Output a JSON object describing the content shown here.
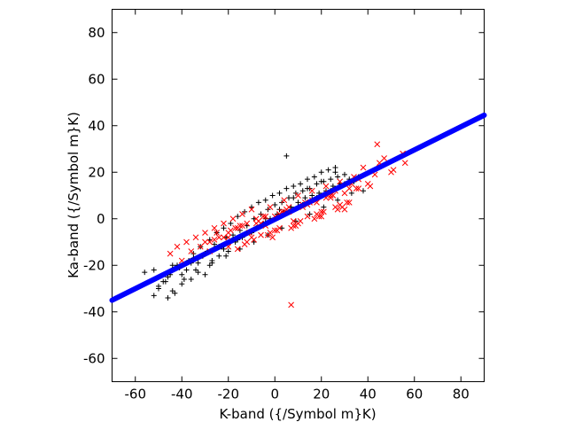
{
  "chart_data": {
    "type": "scatter",
    "xlabel": "K-band ({/Symbol m}K)",
    "ylabel": "Ka-band ({/Symbol m}K)",
    "xlim": [
      -70,
      90
    ],
    "ylim": [
      -70,
      90
    ],
    "xticks": [
      -60,
      -40,
      -20,
      0,
      20,
      40,
      60,
      80
    ],
    "yticks": [
      -60,
      -40,
      -20,
      0,
      20,
      40,
      60,
      80
    ],
    "xtick_labels": [
      "-60",
      "-40",
      "-20",
      "0",
      "20",
      "40",
      "60",
      "80"
    ],
    "ytick_labels": [
      "-60",
      "-40",
      "-20",
      "0",
      "20",
      "40",
      "60",
      "80"
    ],
    "grid": false,
    "series": [
      {
        "marker": "plus",
        "color": "#000000",
        "x": [
          -56,
          -52,
          -50,
          -48,
          -46,
          -45,
          -44,
          -42,
          -40,
          -38,
          -37,
          -36,
          -35,
          -34,
          -33,
          -32,
          -31,
          -30,
          -29,
          -28,
          -27,
          -26,
          -25,
          -24,
          -23,
          -22,
          -21,
          -20,
          -19,
          -18,
          -17,
          -16,
          -15,
          -14,
          -13,
          -12,
          -11,
          -10,
          -9,
          -8,
          -7,
          -6,
          -5,
          -4,
          -3,
          -2,
          -1,
          0,
          1,
          2,
          3,
          4,
          5,
          6,
          7,
          8,
          9,
          10,
          11,
          12,
          13,
          14,
          15,
          16,
          17,
          18,
          19,
          20,
          21,
          22,
          23,
          24,
          25,
          26,
          27,
          28,
          30,
          32,
          34,
          36,
          38,
          -50,
          -46,
          -43,
          -41,
          -39,
          -36,
          -33,
          -30,
          -27,
          -24,
          -21,
          -18,
          -15,
          -12,
          -9,
          -6,
          -3,
          0,
          3,
          6,
          9,
          12,
          15,
          18,
          21,
          24,
          27,
          30,
          33,
          -52,
          -47,
          -44,
          -40,
          -35,
          -28,
          -22,
          -16,
          -10,
          -4,
          2,
          8,
          14,
          20,
          26,
          5
        ],
        "y": [
          -23,
          -22,
          -29,
          -27,
          -34,
          -24,
          -31,
          -20,
          -28,
          -22,
          -18,
          -26,
          -15,
          -22,
          -19,
          -12,
          -16,
          -24,
          -14,
          -9,
          -18,
          -11,
          -6,
          -16,
          -12,
          -4,
          -8,
          -14,
          -2,
          -7,
          -10,
          1,
          -5,
          -8,
          3,
          -3,
          -6,
          5,
          0,
          -4,
          7,
          2,
          -2,
          8,
          4,
          0,
          10,
          6,
          2,
          11,
          7,
          3,
          13,
          9,
          5,
          14,
          11,
          7,
          15,
          12,
          9,
          17,
          13,
          10,
          18,
          15,
          11,
          20,
          16,
          12,
          21,
          17,
          14,
          22,
          18,
          15,
          19,
          17,
          16,
          18,
          12,
          -30,
          -25,
          -32,
          -21,
          -26,
          -19,
          -23,
          -15,
          -19,
          -12,
          -16,
          -9,
          -13,
          -6,
          -10,
          -3,
          -7,
          0,
          -4,
          3,
          -1,
          6,
          2,
          9,
          5,
          12,
          8,
          15,
          11,
          -33,
          -27,
          -20,
          -24,
          -17,
          -20,
          -13,
          -9,
          -6,
          0,
          4,
          9,
          13,
          16,
          20,
          27
        ]
      },
      {
        "marker": "cross",
        "color": "#ff0000",
        "x": [
          -45,
          -42,
          -40,
          -38,
          -36,
          -34,
          -32,
          -30,
          -28,
          -26,
          -24,
          -22,
          -20,
          -18,
          -16,
          -14,
          -12,
          -10,
          -8,
          -6,
          -4,
          -2,
          0,
          2,
          4,
          6,
          8,
          10,
          12,
          14,
          16,
          18,
          20,
          22,
          24,
          26,
          28,
          30,
          32,
          34,
          36,
          38,
          40,
          45,
          50,
          55,
          -30,
          -25,
          -20,
          -15,
          -10,
          -5,
          0,
          5,
          10,
          15,
          20,
          25,
          30,
          35,
          -28,
          -22,
          -17,
          -12,
          -7,
          -2,
          3,
          8,
          13,
          18,
          23,
          28,
          33,
          -26,
          -19,
          -13,
          -8,
          -3,
          2,
          7,
          12,
          17,
          22,
          27,
          32,
          -20,
          -14,
          -9,
          -4,
          1,
          6,
          11,
          16,
          21,
          26,
          31,
          -16,
          -11,
          -6,
          -1,
          4,
          9,
          14,
          19,
          24,
          29,
          7,
          44,
          47,
          51,
          56,
          43,
          36,
          41
        ],
        "y": [
          -15,
          -12,
          -18,
          -10,
          -14,
          -8,
          -12,
          -6,
          -10,
          -4,
          -8,
          -2,
          -6,
          0,
          -4,
          2,
          -2,
          4,
          0,
          -7,
          -3,
          5,
          1,
          -4,
          8,
          3,
          -1,
          10,
          5,
          1,
          12,
          7,
          3,
          14,
          9,
          5,
          16,
          11,
          7,
          18,
          13,
          22,
          15,
          24,
          20,
          28,
          -10,
          -6,
          -12,
          -3,
          -8,
          1,
          -5,
          4,
          -2,
          7,
          1,
          10,
          4,
          13,
          -14,
          -8,
          -4,
          -10,
          -1,
          -6,
          3,
          -3,
          7,
          2,
          11,
          6,
          15,
          -9,
          -5,
          -11,
          -2,
          -7,
          2,
          -4,
          6,
          0,
          9,
          4,
          13,
          -8,
          -3,
          -9,
          1,
          -5,
          5,
          -1,
          8,
          3,
          12,
          7,
          -13,
          -6,
          -2,
          -8,
          3,
          -3,
          6,
          1,
          10,
          5,
          -37,
          32,
          26,
          21,
          24,
          19,
          17,
          14
        ]
      },
      {
        "marker": "filled-circle",
        "color": "#0000ff",
        "kind": "fit-line",
        "x": [
          -70,
          90
        ],
        "y": [
          -35,
          44.5
        ]
      }
    ]
  }
}
